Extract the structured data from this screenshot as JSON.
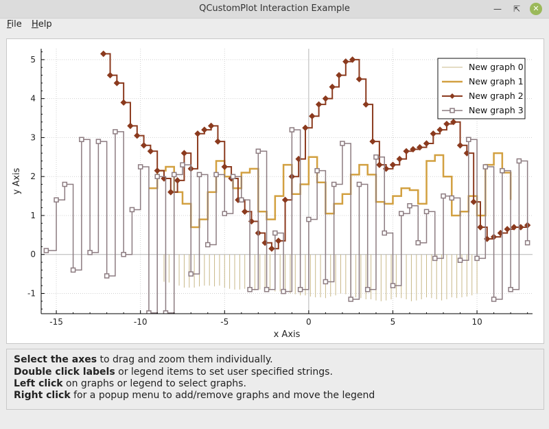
{
  "window": {
    "title": "QCustomPlot Interaction Example"
  },
  "menu": [
    {
      "label": "File",
      "accel": "F",
      "rest": "ile"
    },
    {
      "label": "Help",
      "accel": "H",
      "rest": "elp"
    }
  ],
  "colors": {
    "graph0": "#c8b888",
    "graph1": "#d2a040",
    "graph2": "#8b3a1e",
    "graph3": "#8c7b80",
    "grid": "#d0d0d0",
    "zero": "#b4b4b4"
  },
  "chart_data": {
    "type": "line",
    "xlabel": "x Axis",
    "ylabel": "y Axis",
    "xlim": [
      -15.9,
      13.3
    ],
    "ylim": [
      -1.52,
      5.28
    ],
    "xticks": [
      -15,
      -10,
      -5,
      0,
      5,
      10
    ],
    "yticks": [
      -1,
      0,
      1,
      2,
      3,
      4,
      5
    ],
    "grid": true,
    "legend_position": "top-right",
    "series": [
      {
        "name": "New graph 0",
        "style": "impulse",
        "x": [
          -8.6,
          -8.3,
          -8.0,
          -7.7,
          -7.4,
          -7.1,
          -6.8,
          -6.5,
          -6.2,
          -5.9,
          -5.6,
          -5.3,
          -5.0,
          -4.7,
          -4.4,
          -4.1,
          -3.8,
          -3.5,
          -3.2,
          -2.9,
          -2.6,
          -2.3,
          -2.0,
          -1.7,
          -1.4,
          -1.1,
          -0.8,
          -0.5,
          -0.2,
          0.1,
          0.4,
          0.7,
          1.0,
          1.3,
          1.6,
          1.9,
          2.2,
          2.5,
          2.8,
          3.1,
          3.4,
          3.7,
          4.0,
          4.3,
          4.6,
          4.9,
          5.2,
          5.5,
          5.8,
          6.1,
          6.4,
          6.7,
          7.0,
          7.3,
          7.6,
          7.9,
          8.2,
          8.5,
          8.8,
          9.1,
          9.4,
          9.7,
          10.0
        ],
        "y": [
          -0.7,
          -0.72,
          -0.75,
          -0.8,
          -0.85,
          -0.85,
          -0.85,
          -0.82,
          -0.8,
          -0.8,
          -0.82,
          -0.8,
          -0.85,
          -0.88,
          -0.9,
          -0.9,
          -0.88,
          -0.9,
          -0.92,
          -0.9,
          -0.88,
          -0.9,
          -0.95,
          -0.95,
          -0.97,
          -1.0,
          -1.02,
          -1.05,
          -1.05,
          -1.08,
          -1.1,
          -1.1,
          -1.12,
          -1.08,
          -1.05,
          -1.0,
          -1.02,
          -1.05,
          -1.1,
          -1.12,
          -1.15,
          -1.15,
          -1.18,
          -1.2,
          -1.18,
          -1.15,
          -1.1,
          -1.12,
          -1.15,
          -1.2,
          -1.18,
          -1.15,
          -1.1,
          -1.12,
          -1.15,
          -1.18,
          -1.15,
          -1.1,
          -1.12,
          -1.1,
          -1.08,
          -1.05,
          -1.0
        ]
      },
      {
        "name": "New graph 1",
        "style": "step",
        "x": [
          -9.5,
          -9.0,
          -8.5,
          -8.0,
          -7.5,
          -7.0,
          -6.5,
          -6.0,
          -5.5,
          -5.0,
          -4.5,
          -4.0,
          -3.5,
          -3.0,
          -2.5,
          -2.0,
          -1.5,
          -1.0,
          -0.5,
          0.0,
          0.5,
          1.0,
          1.5,
          2.0,
          2.5,
          3.0,
          3.5,
          4.0,
          4.5,
          5.0,
          5.5,
          6.0,
          6.5,
          7.0,
          7.5,
          8.0,
          8.5,
          9.0,
          9.5,
          10.0,
          10.5,
          11.0,
          11.5,
          12.0
        ],
        "y": [
          1.7,
          2.15,
          2.25,
          1.6,
          1.3,
          0.7,
          0.9,
          1.6,
          2.4,
          2.0,
          1.7,
          2.1,
          2.2,
          1.1,
          0.9,
          1.5,
          2.3,
          1.55,
          1.8,
          2.5,
          1.85,
          1.05,
          1.3,
          1.55,
          2.05,
          2.3,
          2.05,
          1.35,
          1.3,
          1.5,
          1.7,
          1.65,
          1.3,
          2.4,
          2.55,
          2.0,
          1.0,
          1.1,
          1.5,
          1.0,
          2.3,
          2.6,
          2.1,
          1.4
        ]
      },
      {
        "name": "New graph 2",
        "style": "step-marker",
        "x": [
          -12.2,
          -11.8,
          -11.4,
          -11.0,
          -10.6,
          -10.2,
          -9.8,
          -9.4,
          -9.0,
          -8.6,
          -8.2,
          -7.8,
          -7.4,
          -7.0,
          -6.6,
          -6.2,
          -5.8,
          -5.4,
          -5.0,
          -4.6,
          -4.2,
          -3.8,
          -3.4,
          -3.0,
          -2.6,
          -2.2,
          -1.8,
          -1.4,
          -1.0,
          -0.6,
          -0.2,
          0.2,
          0.6,
          1.0,
          1.4,
          1.8,
          2.2,
          2.6,
          3.0,
          3.4,
          3.8,
          4.2,
          4.6,
          5.0,
          5.4,
          5.8,
          6.2,
          6.6,
          7.0,
          7.4,
          7.8,
          8.2,
          8.6,
          9.0,
          9.4,
          9.8,
          10.2,
          10.6,
          11.0,
          11.4,
          11.8,
          12.2,
          12.6,
          13.0
        ],
        "y": [
          5.15,
          4.6,
          4.4,
          3.9,
          3.3,
          3.05,
          2.8,
          2.65,
          2.15,
          1.95,
          1.6,
          1.9,
          2.6,
          2.2,
          3.1,
          3.2,
          3.3,
          2.9,
          2.25,
          1.95,
          1.4,
          1.1,
          0.85,
          0.55,
          0.3,
          0.15,
          0.35,
          1.4,
          2.0,
          2.45,
          3.25,
          3.55,
          3.85,
          4.0,
          4.3,
          4.6,
          4.95,
          5.0,
          4.5,
          3.85,
          2.9,
          2.3,
          2.2,
          2.3,
          2.45,
          2.65,
          2.7,
          2.75,
          2.85,
          3.1,
          3.2,
          3.35,
          3.4,
          2.8,
          2.6,
          1.35,
          0.7,
          0.4,
          0.45,
          0.55,
          0.65,
          0.7,
          0.7,
          0.75
        ]
      },
      {
        "name": "New graph 3",
        "style": "step-marker",
        "x": [
          -15.6,
          -15.0,
          -14.5,
          -14.0,
          -13.5,
          -13.0,
          -12.5,
          -12.0,
          -11.5,
          -11.0,
          -10.5,
          -10.0,
          -9.5,
          -9.0,
          -8.5,
          -8.0,
          -7.5,
          -7.0,
          -6.5,
          -6.0,
          -5.5,
          -5.0,
          -4.5,
          -4.0,
          -3.5,
          -3.0,
          -2.5,
          -2.0,
          -1.5,
          -1.0,
          -0.5,
          0.0,
          0.5,
          1.0,
          1.5,
          2.0,
          2.5,
          3.0,
          3.5,
          4.0,
          4.5,
          5.0,
          5.5,
          6.0,
          6.5,
          7.0,
          7.5,
          8.0,
          8.5,
          9.0,
          9.5,
          10.0,
          10.5,
          11.0,
          11.5,
          12.0,
          12.5,
          13.0
        ],
        "y": [
          0.1,
          1.4,
          1.8,
          -0.4,
          2.95,
          0.05,
          2.9,
          -0.55,
          3.15,
          0.0,
          1.15,
          2.25,
          -1.5,
          2.0,
          -1.5,
          2.05,
          2.3,
          -0.5,
          2.05,
          0.25,
          2.05,
          1.05,
          2.0,
          1.4,
          -0.9,
          2.65,
          -0.9,
          0.55,
          -0.95,
          3.2,
          -0.9,
          0.9,
          2.15,
          -0.7,
          1.8,
          2.85,
          -1.15,
          1.8,
          -0.9,
          2.5,
          0.55,
          -0.8,
          1.05,
          1.25,
          0.3,
          1.1,
          -0.1,
          1.5,
          1.45,
          -0.15,
          2.95,
          -0.1,
          2.25,
          -1.15,
          2.15,
          -0.9,
          2.4,
          0.3
        ]
      }
    ]
  },
  "legend": {
    "items": [
      {
        "label": "New graph 0"
      },
      {
        "label": "New graph 1"
      },
      {
        "label": "New graph 2"
      },
      {
        "label": "New graph 3"
      }
    ]
  },
  "info": {
    "line1_bold": "Select the axes",
    "line1_rest": " to drag and zoom them individually.",
    "line2_bold": "Double click labels",
    "line2_rest": " or legend items to set user specified strings.",
    "line3_bold": "Left click",
    "line3_rest": " on graphs or legend to select graphs.",
    "line4_bold": "Right click",
    "line4_rest": " for a popup menu to add/remove graphs and move the legend"
  }
}
